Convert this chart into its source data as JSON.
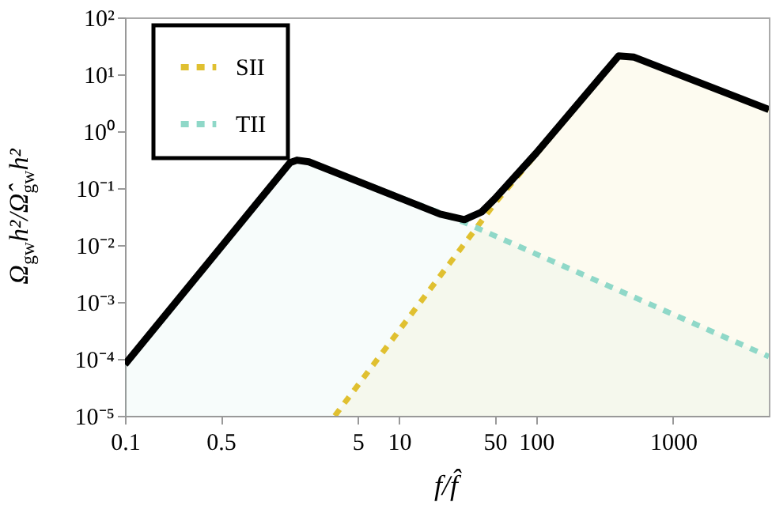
{
  "chart_data": {
    "type": "line",
    "xlabel": "f/f̂",
    "ylabel": "Ω$_{gw}$h²/Ω̂$_{gw}$h²",
    "log": "xy",
    "legend": "top left",
    "xlim": [
      0.1,
      5000
    ],
    "xticks": [
      0.1,
      0.5,
      5,
      10,
      50,
      100,
      1000
    ],
    "ylim": [
      1e-05,
      100
    ],
    "yticks": [
      {
        "value": 1e-05,
        "label": "10⁻⁵"
      },
      {
        "value": 0.0001,
        "label": "10⁻⁴"
      },
      {
        "value": 0.001,
        "label": "10⁻³"
      },
      {
        "value": 0.01,
        "label": "10⁻²"
      },
      {
        "value": 0.1,
        "label": "10⁻¹"
      },
      {
        "value": 1,
        "label": "10⁰"
      },
      {
        "value": 10,
        "label": "10¹"
      },
      {
        "value": 100,
        "label": "10²"
      }
    ],
    "series": [
      {
        "name": "SII",
        "type": "area",
        "color": "#e0c030",
        "line_style": "dashed",
        "x": [
          3.4,
          50,
          400,
          520,
          5000
        ],
        "values": [
          1e-05,
          0.054,
          21,
          20,
          2.4
        ]
      },
      {
        "name": "TII",
        "type": "area",
        "color": "#8fd8c8",
        "line_style": "dashed",
        "x": [
          0.1,
          1.6,
          1.8,
          2.2,
          30,
          5000
        ],
        "values": [
          8e-05,
          0.28,
          0.31,
          0.29,
          0.025,
          0.00011
        ]
      },
      {
        "type": "line",
        "color": "#000000",
        "line_style": "solid",
        "x": [
          0.1,
          1.6,
          1.8,
          2.2,
          20,
          30,
          40,
          50,
          100,
          400,
          520,
          5000
        ],
        "values": [
          8e-05,
          0.28,
          0.31,
          0.29,
          0.035,
          0.028,
          0.038,
          0.065,
          0.41,
          21,
          20,
          2.4
        ]
      }
    ]
  }
}
